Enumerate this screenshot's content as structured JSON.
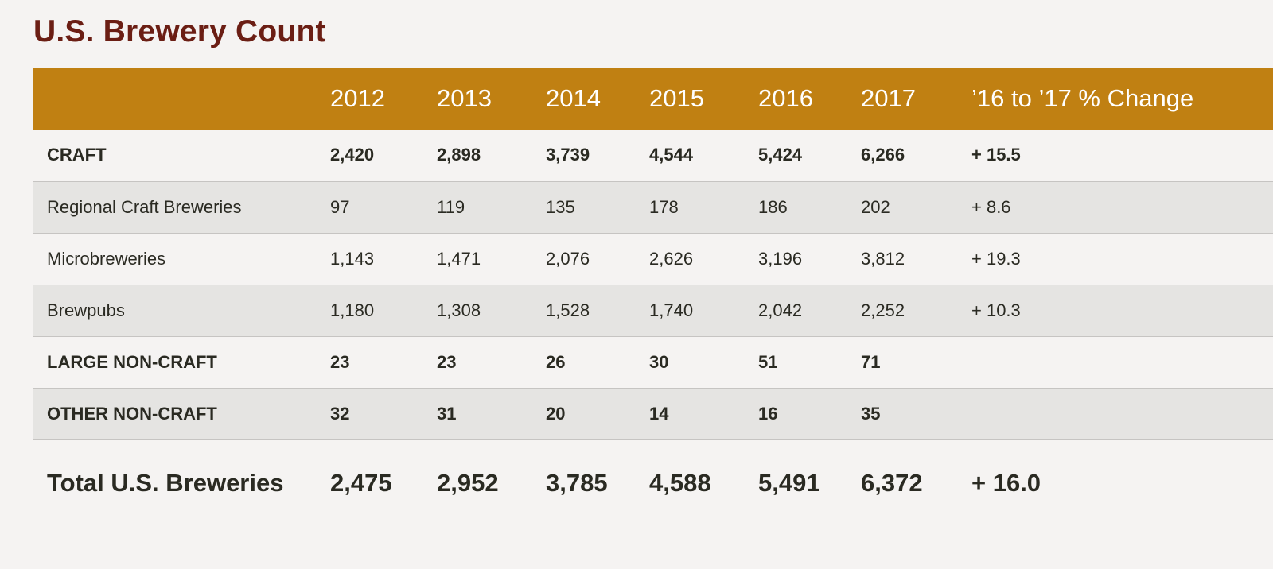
{
  "title": "U.S. Brewery Count",
  "colors": {
    "header_bg": "#c08012",
    "title_color": "#6b1e14",
    "shade_row": "#e5e4e2",
    "page_bg": "#f5f3f2"
  },
  "chart_data": {
    "type": "table",
    "title": "U.S. Brewery Count",
    "columns": [
      "",
      "2012",
      "2013",
      "2014",
      "2015",
      "2016",
      "2017",
      "’16 to ’17 % Change"
    ],
    "rows": [
      {
        "label": "CRAFT",
        "values": [
          "2,420",
          "2,898",
          "3,739",
          "4,544",
          "5,424",
          "6,266",
          "+ 15.5"
        ],
        "style": "bold"
      },
      {
        "label": "Regional Craft Breweries",
        "values": [
          "97",
          "119",
          "135",
          "178",
          "186",
          "202",
          "+ 8.6"
        ],
        "style": "normal"
      },
      {
        "label": "Microbreweries",
        "values": [
          "1,143",
          "1,471",
          "2,076",
          "2,626",
          "3,196",
          "3,812",
          "+ 19.3"
        ],
        "style": "normal"
      },
      {
        "label": "Brewpubs",
        "values": [
          "1,180",
          "1,308",
          "1,528",
          "1,740",
          "2,042",
          "2,252",
          "+ 10.3"
        ],
        "style": "normal"
      },
      {
        "label": "LARGE NON-CRAFT",
        "values": [
          "23",
          "23",
          "26",
          "30",
          "51",
          "71",
          ""
        ],
        "style": "bold"
      },
      {
        "label": "OTHER NON-CRAFT",
        "values": [
          "32",
          "31",
          "20",
          "14",
          "16",
          "35",
          ""
        ],
        "style": "bold"
      }
    ],
    "total": {
      "label": "Total U.S. Breweries",
      "values": [
        "2,475",
        "2,952",
        "3,785",
        "4,588",
        "5,491",
        "6,372",
        "+ 16.0"
      ]
    }
  }
}
